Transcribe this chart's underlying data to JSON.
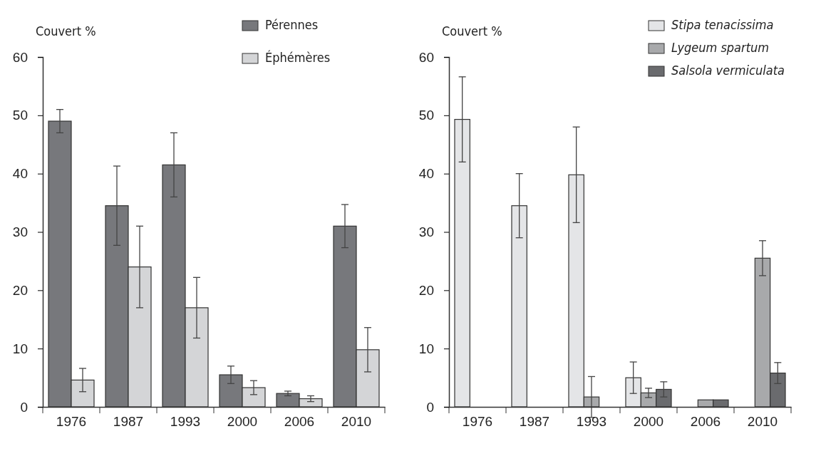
{
  "chart_data": [
    {
      "type": "bar",
      "ylabel": "Couvert %",
      "categories": [
        "1976",
        "1987",
        "1993",
        "2000",
        "2006",
        "2010"
      ],
      "ylim": [
        0,
        60
      ],
      "yticks": [
        0,
        10,
        20,
        30,
        40,
        50,
        60
      ],
      "legend": "top right",
      "series": [
        {
          "name": "Pérennes",
          "color": "#77787c",
          "values": [
            49,
            34.5,
            41.5,
            5.5,
            2.3,
            31
          ],
          "errors": [
            2,
            6.8,
            5.5,
            1.5,
            0.4,
            3.7
          ]
        },
        {
          "name": "Éphémères",
          "color": "#d4d5d7",
          "values": [
            4.6,
            24,
            17,
            3.3,
            1.4,
            9.8
          ],
          "errors": [
            2,
            7,
            5.2,
            1.2,
            0.5,
            3.8
          ]
        }
      ]
    },
    {
      "type": "bar",
      "ylabel": "Couvert %",
      "categories": [
        "1976",
        "1987",
        "1993",
        "2000",
        "2006",
        "2010"
      ],
      "ylim": [
        0,
        60
      ],
      "yticks": [
        0,
        10,
        20,
        30,
        40,
        50,
        60
      ],
      "legend": "top right",
      "series": [
        {
          "name": "Stipa tenacissima",
          "color": "#e4e5e7",
          "values": [
            49.3,
            34.5,
            39.8,
            5,
            null,
            null
          ],
          "errors": [
            7.3,
            5.5,
            8.2,
            2.7,
            null,
            null
          ]
        },
        {
          "name": "Lygeum spartum",
          "color": "#a8a9ab",
          "values": [
            null,
            null,
            1.7,
            2.4,
            1.2,
            25.5
          ],
          "errors": [
            null,
            null,
            3.5,
            0.8,
            null,
            3
          ]
        },
        {
          "name": "Salsola vermiculata",
          "color": "#6a6b6e",
          "values": [
            null,
            null,
            null,
            3,
            1.2,
            5.8
          ],
          "errors": [
            null,
            null,
            null,
            1.3,
            null,
            1.8
          ]
        }
      ]
    }
  ]
}
